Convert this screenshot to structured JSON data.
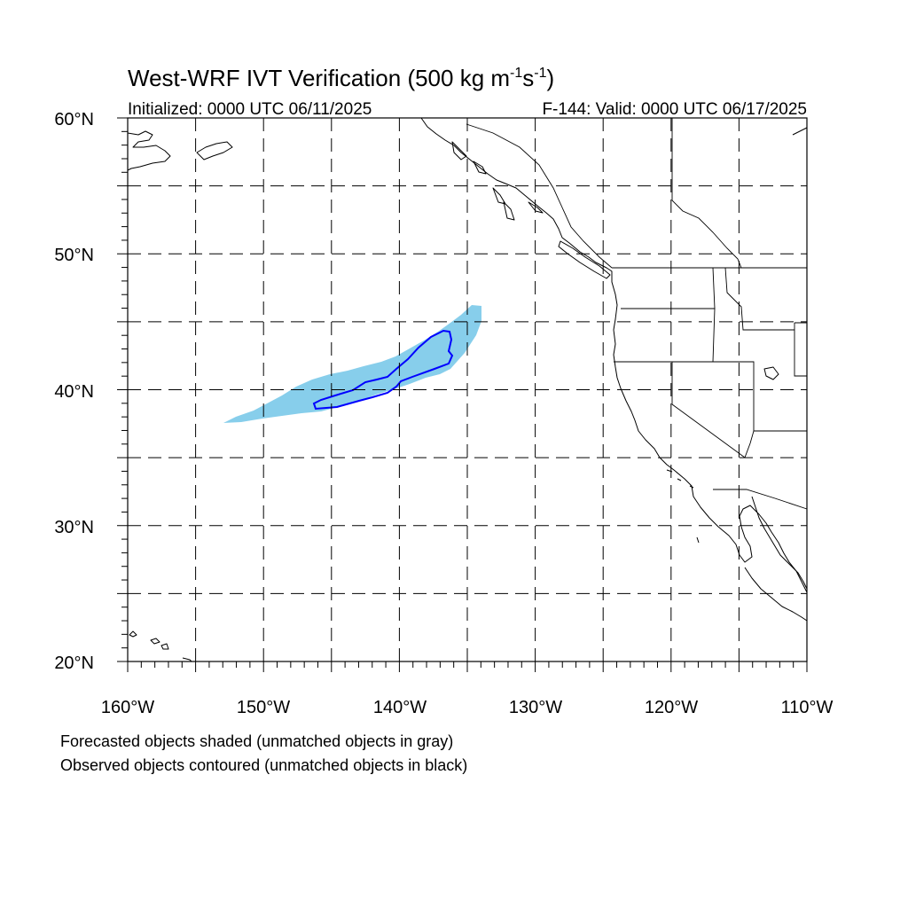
{
  "title": {
    "main": "West-WRF IVT Verification (500 kg m",
    "exp1": "-1",
    "s": "s",
    "exp2": "-1",
    "close": ")"
  },
  "initialized": "Initialized: 0000 UTC 06/11/2025",
  "valid": "F-144: Valid: 0000 UTC 06/17/2025",
  "map": {
    "lon_range": [
      -160,
      -110
    ],
    "lat_range": [
      20,
      60
    ],
    "grid_step_deg": 5,
    "lat_labels": [
      "60°N",
      "50°N",
      "40°N",
      "30°N",
      "20°N"
    ],
    "lon_labels": [
      "160°W",
      "150°W",
      "140°W",
      "130°W",
      "120°W",
      "110°W"
    ],
    "colors": {
      "forecast_fill": "#87ceeb",
      "observed_contour": "#0000ff",
      "coastline": "#000000"
    }
  },
  "footnotes": {
    "line1": "Forecasted objects shaded (unmatched objects in gray)",
    "line2": "Observed objects contoured (unmatched objects in black)"
  }
}
